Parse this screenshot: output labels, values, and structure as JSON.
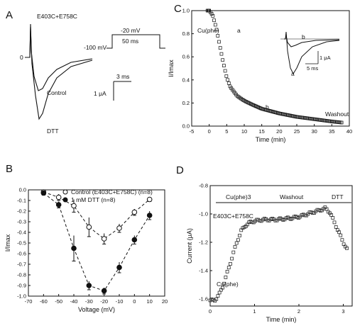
{
  "figure": {
    "panels": {
      "A": {
        "letter": "A",
        "construct": "E403C+E758C",
        "zero_label": "0",
        "protocol": {
          "holding": "-100 mV",
          "step": "-20 mV",
          "duration": "50 ms"
        },
        "traces": {
          "control": "Control",
          "dtt": "DTT"
        },
        "scalebar": {
          "time": "3 ms",
          "current": "1 μA"
        }
      },
      "B": {
        "letter": "B"
      },
      "C": {
        "letter": "C",
        "annotation_cu": "Cu(phe)",
        "marker_a": "a",
        "marker_b": "b",
        "washout": "Washout",
        "inset": {
          "a": "a",
          "b": "b",
          "current_scale": "1 μA",
          "time_scale": "5 ms"
        }
      },
      "D": {
        "letter": "D",
        "bar_labels": [
          "Cu(phe)3",
          "Washout",
          "DTT"
        ],
        "construct": "E403C+E758C",
        "annotation_cu": "Cu(phe)"
      }
    }
  },
  "chart_data": [
    {
      "panel": "B",
      "type": "scatter",
      "xlabel": "Voltage (mV)",
      "ylabel": "I/Imax",
      "xlim": [
        -70,
        20
      ],
      "ylim": [
        -1.0,
        0.0
      ],
      "xticks": [
        "-70",
        "-60",
        "-50",
        "-40",
        "-30",
        "-20",
        "-10",
        "0",
        "10",
        "20"
      ],
      "yticks": [
        "0.0",
        "-0.1",
        "-0.2",
        "-0.3",
        "-0.4",
        "-0.5",
        "-0.6",
        "-0.7",
        "-0.8",
        "-0.9",
        "-1.0"
      ],
      "legend": [
        "Control (E403C+E758C) (n=8)",
        "1 mM DTT (n=8)"
      ],
      "legend_position": "top",
      "series": [
        {
          "name": "Control (E403C+E758C) (n=8)",
          "marker": "open-circle",
          "x": [
            -60,
            -50,
            -40,
            -30,
            -20,
            -10,
            0,
            10
          ],
          "y": [
            -0.02,
            -0.07,
            -0.15,
            -0.35,
            -0.46,
            -0.36,
            -0.21,
            -0.09
          ],
          "err": [
            0.02,
            0.03,
            0.06,
            0.09,
            0.05,
            0.04,
            0.03,
            0.02
          ]
        },
        {
          "name": "1 mM DTT (n=8)",
          "marker": "filled-circle",
          "x": [
            -60,
            -50,
            -40,
            -30,
            -20,
            -10,
            0,
            10
          ],
          "y": [
            -0.03,
            -0.14,
            -0.55,
            -0.9,
            -0.95,
            -0.73,
            -0.47,
            -0.24
          ],
          "err": [
            0.02,
            0.03,
            0.12,
            0.04,
            0.03,
            0.05,
            0.04,
            0.04
          ]
        }
      ]
    },
    {
      "panel": "C",
      "type": "scatter",
      "xlabel": "Time (min)",
      "ylabel": "I/Imax",
      "xlim": [
        -5,
        40
      ],
      "ylim": [
        0.0,
        1.0
      ],
      "xticks": [
        "-5",
        "0",
        "5",
        "10",
        "15",
        "20",
        "25",
        "30",
        "35",
        "40"
      ],
      "yticks": [
        "0.0",
        "0.2",
        "0.4",
        "0.6",
        "0.8",
        "1.0"
      ],
      "decay": {
        "t": [
          0,
          1,
          2,
          3,
          4,
          5,
          6,
          8,
          10,
          12,
          15,
          20,
          25,
          30,
          35,
          38
        ],
        "y": [
          1.0,
          0.96,
          0.85,
          0.7,
          0.55,
          0.42,
          0.34,
          0.26,
          0.22,
          0.19,
          0.15,
          0.11,
          0.08,
          0.06,
          0.04,
          0.03
        ]
      }
    },
    {
      "panel": "D",
      "type": "scatter",
      "xlabel": "Time (min)",
      "ylabel": "Current (μA)",
      "xlim": [
        0,
        3.2
      ],
      "ylim": [
        -1.65,
        -0.8
      ],
      "xticks": [
        "0",
        "1",
        "2",
        "3"
      ],
      "yticks": [
        "-0.8",
        "-1.0",
        "-1.2",
        "-1.4",
        "-1.6"
      ],
      "trace": {
        "t": [
          0,
          0.1,
          0.2,
          0.3,
          0.4,
          0.5,
          0.6,
          0.7,
          0.8,
          0.9,
          1.0,
          1.2,
          1.5,
          1.8,
          2.0,
          2.2,
          2.4,
          2.6,
          2.7,
          2.8,
          2.9,
          3.0,
          3.1
        ],
        "y": [
          -1.61,
          -1.61,
          -1.57,
          -1.5,
          -1.4,
          -1.3,
          -1.2,
          -1.12,
          -1.08,
          -1.06,
          -1.05,
          -1.04,
          -1.04,
          -1.03,
          -1.02,
          -1.0,
          -0.98,
          -0.96,
          -0.99,
          -1.06,
          -1.13,
          -1.2,
          -1.26
        ]
      }
    }
  ]
}
